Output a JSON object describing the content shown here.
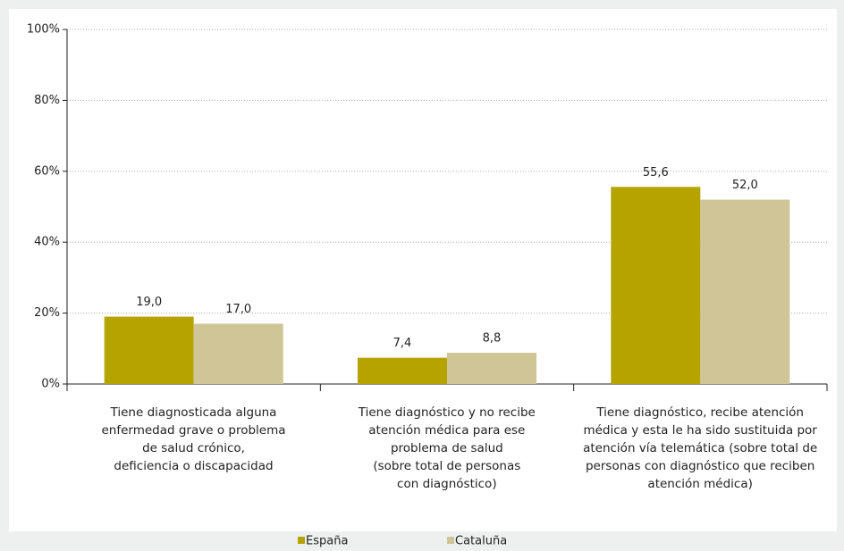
{
  "chart_data": {
    "type": "bar",
    "categories": [
      "Tiene diagnosticada alguna\nenfermedad grave o problema\nde salud crónico,\ndeficiencia o discapacidad",
      "Tiene diagnóstico y no recibe\natención médica para ese\nproblema de salud\n(sobre total de personas\ncon diagnóstico)",
      "Tiene diagnóstico, recibe atención\nmédica y esta le ha sido sustituida por\natención vía telemática (sobre total de\npersonas con diagnóstico que reciben\natención médica)"
    ],
    "series": [
      {
        "name": "España",
        "color": "#b5a300",
        "values": [
          19.0,
          7.4,
          55.6
        ],
        "value_labels": [
          "19,0",
          "7,4",
          "55,6"
        ]
      },
      {
        "name": "Cataluña",
        "color": "#cfc596",
        "values": [
          17.0,
          8.8,
          52.0
        ],
        "value_labels": [
          "17,0",
          "8,8",
          "52,0"
        ]
      }
    ],
    "ylim": [
      0,
      100
    ],
    "yticks": [
      {
        "value": 0,
        "label": "0%"
      },
      {
        "value": 20,
        "label": "20%"
      },
      {
        "value": 40,
        "label": "40%"
      },
      {
        "value": 60,
        "label": "60%"
      },
      {
        "value": 80,
        "label": "80%"
      },
      {
        "value": 100,
        "label": "100%"
      }
    ],
    "grid": true,
    "legend": "bottom"
  }
}
